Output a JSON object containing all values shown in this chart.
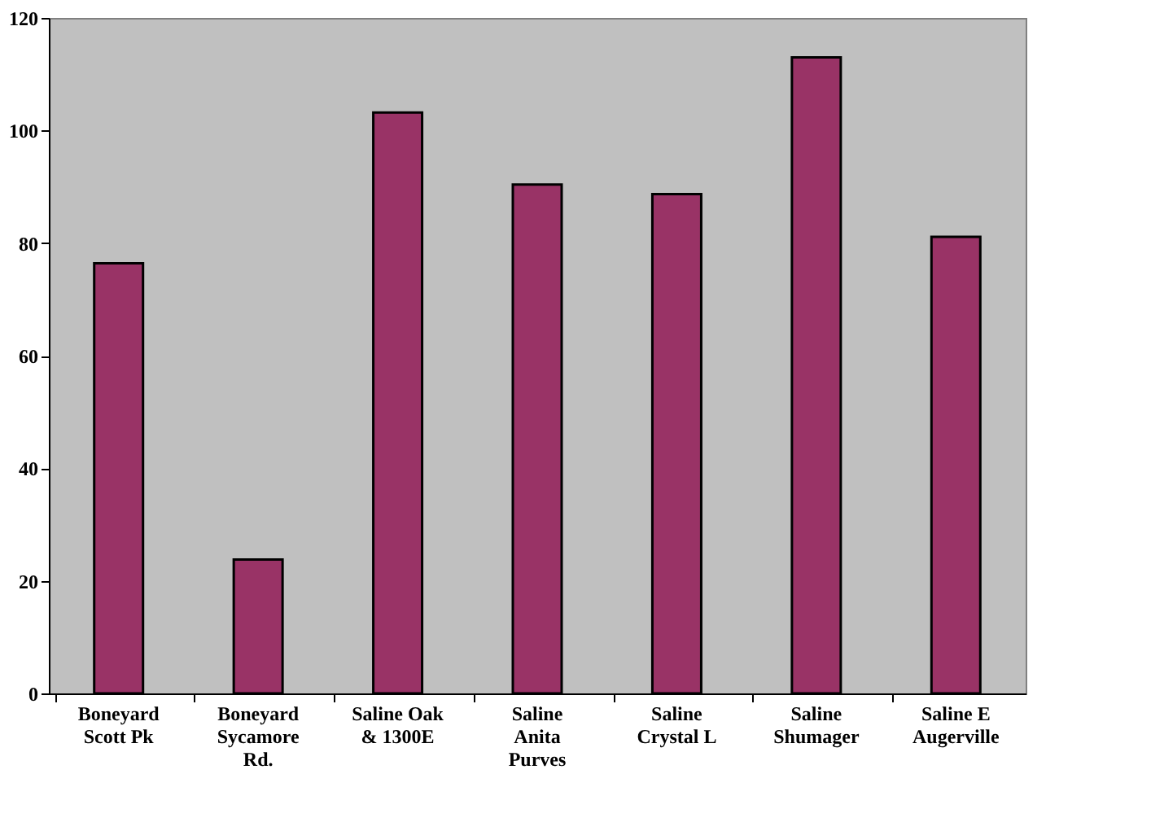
{
  "chart_data": {
    "type": "bar",
    "categories": [
      "Boneyard Scott Pk",
      "Boneyard Sycamore Rd.",
      "Saline Oak & 1300E",
      "Saline Anita Purves",
      "Saline Crystal L",
      "Saline Shumager",
      "Saline E Augerville"
    ],
    "values": [
      76.4,
      23.8,
      103.2,
      90.4,
      88.7,
      113.0,
      81.1
    ],
    "color": "#993366",
    "ylim": [
      0,
      120
    ],
    "yticks": [
      0,
      20,
      40,
      60,
      80,
      100,
      120
    ],
    "grid": false
  }
}
